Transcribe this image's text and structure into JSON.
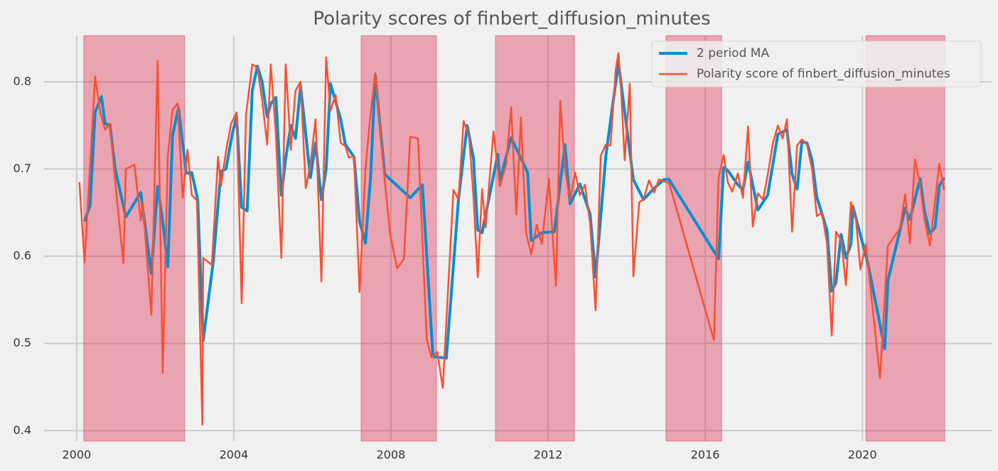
{
  "chart_data": {
    "type": "line",
    "title": "Polarity scores of finbert_diffusion_minutes",
    "xlim": [
      1999.17,
      2023.29
    ],
    "ylim": [
      0.388,
      0.853
    ],
    "xticks": [
      2000,
      2004,
      2008,
      2012,
      2016,
      2020
    ],
    "yticks": [
      0.4,
      0.5,
      0.6,
      0.7,
      0.8
    ],
    "grid": true,
    "legend": "upper right",
    "shaded_regions": [
      [
        2000.18,
        2002.75
      ],
      [
        2007.24,
        2009.16
      ],
      [
        2010.66,
        2012.67
      ],
      [
        2015.0,
        2016.42
      ],
      [
        2020.09,
        2022.1
      ]
    ],
    "shaded_color": "#dc143c",
    "series": [
      {
        "name": "2 period MA",
        "color": "#008fd5",
        "width": 4,
        "x": [
          2000.2,
          2000.34,
          2000.47,
          2000.63,
          2000.72,
          2000.85,
          2000.98,
          2001.25,
          2001.63,
          2001.9,
          2002.06,
          2002.19,
          2002.32,
          2002.44,
          2002.59,
          2002.79,
          2002.93,
          2003.08,
          2003.22,
          2003.48,
          2003.67,
          2003.8,
          2003.96,
          2004.07,
          2004.2,
          2004.34,
          2004.47,
          2004.6,
          2004.72,
          2004.85,
          2004.94,
          2005.07,
          2005.21,
          2005.32,
          2005.45,
          2005.57,
          2005.7,
          2005.95,
          2006.08,
          2006.23,
          2006.35,
          2006.46,
          2006.72,
          2006.84,
          2007.06,
          2007.2,
          2007.35,
          2007.48,
          2007.6,
          2007.84,
          2008.49,
          2008.8,
          2009.07,
          2009.41,
          2009.72,
          2009.94,
          2010.1,
          2010.21,
          2010.32,
          2010.72,
          2010.77,
          2011.06,
          2011.48,
          2011.57,
          2011.84,
          2012.16,
          2012.43,
          2012.56,
          2012.81,
          2013.07,
          2013.21,
          2013.47,
          2013.79,
          2014.17,
          2014.43,
          2014.7,
          2014.95,
          2015.08,
          2016.34,
          2016.47,
          2016.58,
          2016.83,
          2016.96,
          2017.09,
          2017.34,
          2017.59,
          2017.85,
          2018.08,
          2018.21,
          2018.34,
          2018.46,
          2018.59,
          2018.72,
          2018.84,
          2019.1,
          2019.22,
          2019.33,
          2019.46,
          2019.58,
          2019.71,
          2019.76,
          2020.14,
          2020.57,
          2020.65,
          2021.09,
          2021.21,
          2021.47,
          2021.58,
          2021.72,
          2021.85,
          2021.96,
          2022.08
        ],
        "values": [
          0.64,
          0.658,
          0.765,
          0.783,
          0.752,
          0.75,
          0.7,
          0.645,
          0.673,
          0.58,
          0.68,
          0.64,
          0.588,
          0.738,
          0.77,
          0.695,
          0.696,
          0.665,
          0.503,
          0.595,
          0.697,
          0.7,
          0.74,
          0.76,
          0.656,
          0.652,
          0.79,
          0.818,
          0.8,
          0.76,
          0.775,
          0.782,
          0.67,
          0.712,
          0.75,
          0.735,
          0.795,
          0.69,
          0.73,
          0.665,
          0.7,
          0.798,
          0.757,
          0.728,
          0.714,
          0.64,
          0.615,
          0.69,
          0.808,
          0.694,
          0.667,
          0.682,
          0.485,
          0.483,
          0.665,
          0.75,
          0.712,
          0.63,
          0.627,
          0.717,
          0.686,
          0.736,
          0.696,
          0.618,
          0.627,
          0.628,
          0.728,
          0.66,
          0.683,
          0.648,
          0.576,
          0.715,
          0.822,
          0.688,
          0.665,
          0.678,
          0.688,
          0.688,
          0.597,
          0.702,
          0.698,
          0.682,
          0.676,
          0.708,
          0.653,
          0.67,
          0.74,
          0.745,
          0.694,
          0.677,
          0.731,
          0.73,
          0.71,
          0.668,
          0.63,
          0.56,
          0.57,
          0.625,
          0.598,
          0.614,
          0.657,
          0.592,
          0.494,
          0.572,
          0.655,
          0.642,
          0.689,
          0.652,
          0.626,
          0.633,
          0.681,
          0.69
        ]
      },
      {
        "name": "Polarity score of finbert_diffusion_minutes",
        "color": "#fc4f30",
        "width": 2.5,
        "x": [
          2000.07,
          2000.2,
          2000.47,
          2000.6,
          2000.72,
          2000.85,
          2000.96,
          2001.19,
          2001.25,
          2001.47,
          2001.63,
          2001.68,
          2001.9,
          2002.06,
          2002.19,
          2002.32,
          2002.44,
          2002.57,
          2002.7,
          2002.82,
          2002.93,
          2003.06,
          2003.2,
          2003.22,
          2003.44,
          2003.6,
          2003.67,
          2003.8,
          2003.93,
          2004.07,
          2004.2,
          2004.31,
          2004.47,
          2004.6,
          2004.72,
          2004.85,
          2004.94,
          2005.07,
          2005.21,
          2005.32,
          2005.45,
          2005.57,
          2005.7,
          2005.83,
          2005.95,
          2006.08,
          2006.23,
          2006.35,
          2006.46,
          2006.59,
          2006.72,
          2006.84,
          2006.93,
          2007.06,
          2007.2,
          2007.35,
          2007.48,
          2007.6,
          2007.71,
          2007.84,
          2007.98,
          2008.16,
          2008.33,
          2008.49,
          2008.69,
          2008.91,
          2009.03,
          2009.18,
          2009.32,
          2009.59,
          2009.72,
          2009.85,
          2009.99,
          2010.1,
          2010.21,
          2010.32,
          2010.41,
          2010.61,
          2010.77,
          2010.93,
          2011.06,
          2011.19,
          2011.31,
          2011.44,
          2011.57,
          2011.71,
          2011.84,
          2012.02,
          2012.2,
          2012.31,
          2012.43,
          2012.56,
          2012.69,
          2012.81,
          2012.94,
          2013.07,
          2013.21,
          2013.34,
          2013.47,
          2013.59,
          2013.72,
          2013.79,
          2013.86,
          2013.95,
          2014.08,
          2014.17,
          2014.32,
          2014.43,
          2014.57,
          2014.7,
          2014.82,
          2014.95,
          2015.08,
          2016.22,
          2016.34,
          2016.47,
          2016.58,
          2016.69,
          2016.83,
          2016.96,
          2017.09,
          2017.21,
          2017.34,
          2017.47,
          2017.59,
          2017.72,
          2017.85,
          2017.97,
          2018.08,
          2018.21,
          2018.34,
          2018.46,
          2018.59,
          2018.72,
          2018.84,
          2018.97,
          2019.1,
          2019.22,
          2019.33,
          2019.46,
          2019.58,
          2019.71,
          2019.84,
          2019.95,
          2020.09,
          2020.45,
          2020.65,
          2020.96,
          2021.09,
          2021.21,
          2021.34,
          2021.47,
          2021.58,
          2021.72,
          2021.96,
          2022.08
        ],
        "values": [
          0.685,
          0.593,
          0.806,
          0.765,
          0.745,
          0.752,
          0.695,
          0.592,
          0.7,
          0.705,
          0.641,
          0.662,
          0.533,
          0.824,
          0.466,
          0.715,
          0.768,
          0.775,
          0.667,
          0.722,
          0.67,
          0.664,
          0.407,
          0.598,
          0.59,
          0.714,
          0.68,
          0.72,
          0.752,
          0.765,
          0.546,
          0.762,
          0.82,
          0.816,
          0.78,
          0.728,
          0.82,
          0.74,
          0.598,
          0.82,
          0.722,
          0.79,
          0.8,
          0.678,
          0.705,
          0.757,
          0.571,
          0.828,
          0.767,
          0.785,
          0.73,
          0.726,
          0.713,
          0.715,
          0.559,
          0.7,
          0.763,
          0.81,
          0.755,
          0.688,
          0.625,
          0.586,
          0.597,
          0.737,
          0.735,
          0.505,
          0.484,
          0.49,
          0.449,
          0.676,
          0.665,
          0.755,
          0.737,
          0.668,
          0.576,
          0.677,
          0.633,
          0.743,
          0.68,
          0.705,
          0.771,
          0.648,
          0.759,
          0.627,
          0.602,
          0.636,
          0.614,
          0.689,
          0.566,
          0.778,
          0.7,
          0.664,
          0.696,
          0.67,
          0.682,
          0.637,
          0.538,
          0.715,
          0.728,
          0.727,
          0.813,
          0.833,
          0.79,
          0.71,
          0.798,
          0.577,
          0.662,
          0.665,
          0.687,
          0.673,
          0.688,
          0.686,
          0.684,
          0.504,
          0.69,
          0.716,
          0.684,
          0.674,
          0.695,
          0.667,
          0.749,
          0.634,
          0.672,
          0.665,
          0.693,
          0.729,
          0.75,
          0.735,
          0.757,
          0.628,
          0.727,
          0.734,
          0.728,
          0.7,
          0.646,
          0.65,
          0.615,
          0.509,
          0.628,
          0.619,
          0.567,
          0.662,
          0.641,
          0.585,
          0.614,
          0.46,
          0.612,
          0.632,
          0.671,
          0.615,
          0.711,
          0.682,
          0.643,
          0.612,
          0.706,
          0.676
        ]
      }
    ]
  }
}
